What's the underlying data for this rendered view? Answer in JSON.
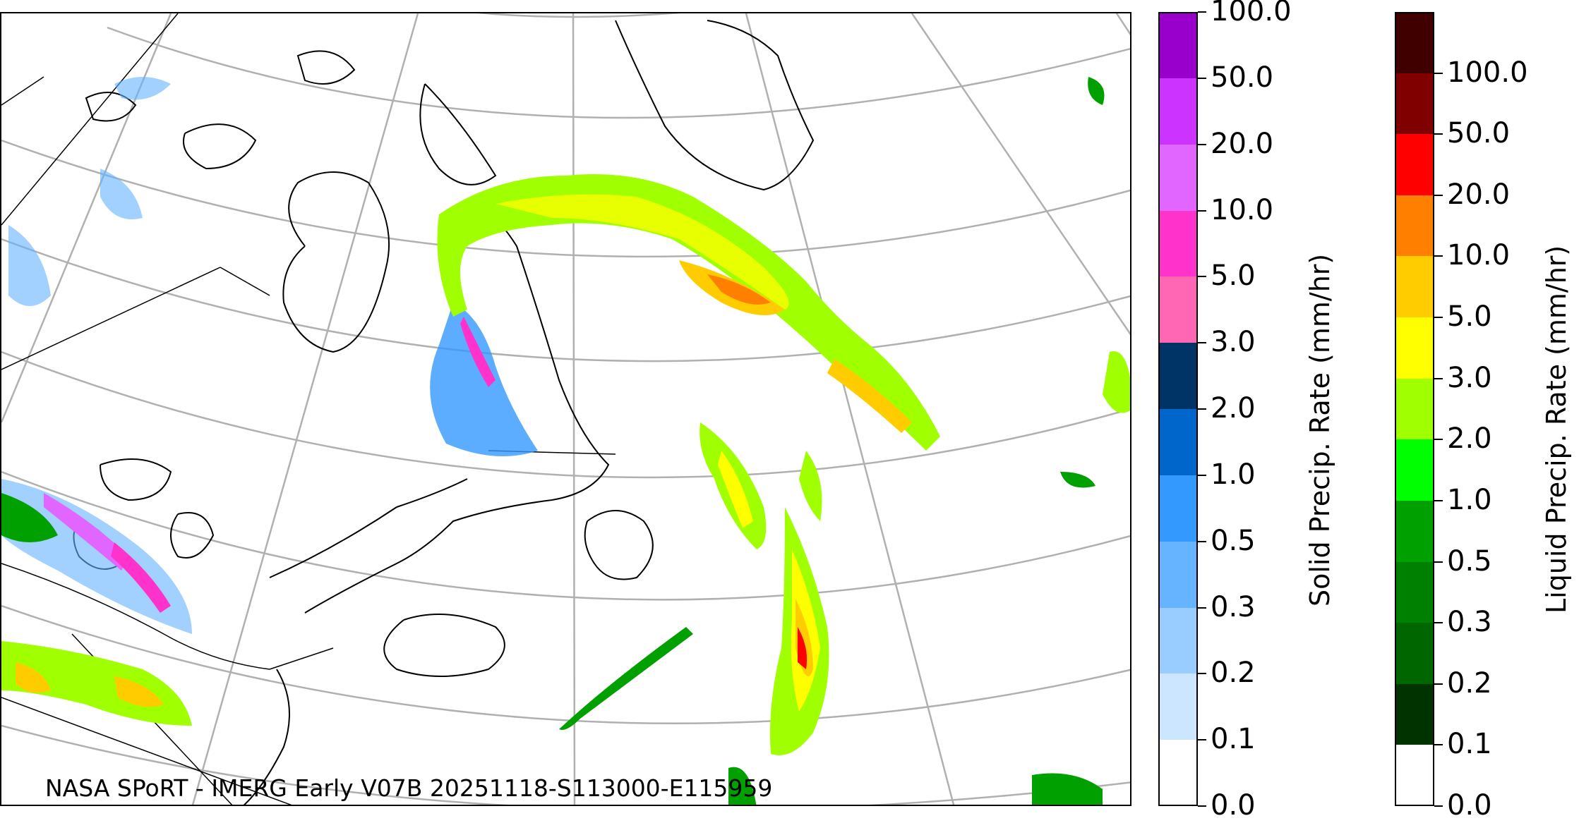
{
  "credit": "NASA SPoRT - IMERG Early V07B 20251118-S113000-E115959",
  "colorbars": {
    "solid": {
      "label": "Solid Precip. Rate (mm/hr)",
      "ticks": [
        "0.0",
        "0.1",
        "0.2",
        "0.3",
        "0.5",
        "1.0",
        "2.0",
        "3.0",
        "5.0",
        "10.0",
        "20.0",
        "50.0",
        "100.0"
      ],
      "colors": [
        "#ffffff",
        "#cce6ff",
        "#99ccff",
        "#66b3ff",
        "#3399ff",
        "#0066cc",
        "#003366",
        "#ff66b3",
        "#ff33cc",
        "#e066ff",
        "#cc33ff",
        "#9900cc"
      ]
    },
    "liquid": {
      "label": "Liquid Precip. Rate (mm/hr)",
      "ticks": [
        "0.0",
        "0.1",
        "0.2",
        "0.3",
        "0.5",
        "1.0",
        "2.0",
        "3.0",
        "5.0",
        "10.0",
        "20.0",
        "50.0",
        "100.0"
      ],
      "colors": [
        "#ffffff",
        "#003300",
        "#006600",
        "#008000",
        "#00a000",
        "#00ff00",
        "#a0ff00",
        "#ffff00",
        "#ffcc00",
        "#ff8000",
        "#ff0000",
        "#800000",
        "#400000"
      ]
    }
  },
  "map_colors": {
    "coast": "#000000",
    "graticule": "#b0b0b0"
  }
}
